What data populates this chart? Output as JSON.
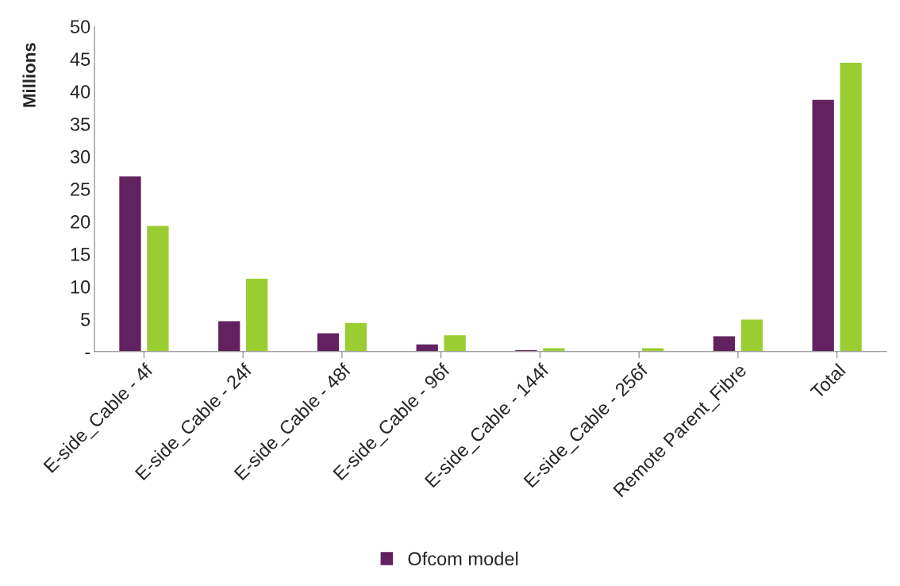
{
  "chart_data": {
    "type": "bar",
    "ylabel": "Millions",
    "categories": [
      "E-side_Cable - 4f",
      "E-side_Cable - 24f",
      "E-side_Cable - 48f",
      "E-side_Cable - 96f",
      "E-side_Cable - 144f",
      "E-side_Cable - 256f",
      "Remote Parent_Fibre",
      "Total"
    ],
    "series": [
      {
        "name": "Ofcom model",
        "color": "#62225f",
        "values": [
          27,
          4.75,
          2.9,
          1.2,
          0.3,
          null,
          2.45,
          38.8
        ]
      },
      {
        "color": "#9acd32",
        "values": [
          19.4,
          11.3,
          4.5,
          2.6,
          0.6,
          0.6,
          5.0,
          44.5
        ]
      }
    ],
    "ylim": [
      0,
      50
    ],
    "yticks": [
      {
        "value": 0,
        "label": "-"
      },
      5,
      10,
      15,
      20,
      25,
      30,
      35,
      40,
      45,
      50
    ],
    "grid": false,
    "legend": "bottom"
  }
}
